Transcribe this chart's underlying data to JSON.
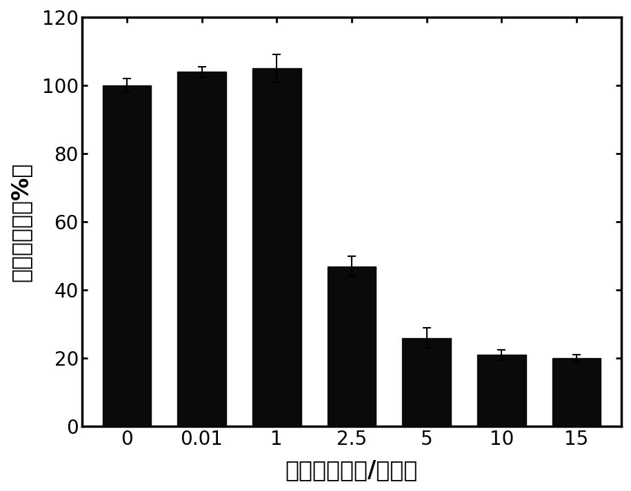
{
  "categories": [
    "0",
    "0.01",
    "1",
    "2.5",
    "5",
    "10",
    "15"
  ],
  "values": [
    100,
    104,
    105,
    47,
    26,
    21,
    20
  ],
  "errors": [
    2.0,
    1.5,
    4.0,
    3.0,
    3.0,
    1.5,
    1.0
  ],
  "bar_color": "#0a0a0a",
  "edge_color": "#0a0a0a",
  "background_color": "#ffffff",
  "xlabel": "浓度（微摩尔/毫升）",
  "ylabel": "细胞存活率（%）",
  "ylim": [
    0,
    120
  ],
  "yticks": [
    0,
    20,
    40,
    60,
    80,
    100,
    120
  ],
  "xlabel_fontsize": 24,
  "ylabel_fontsize": 24,
  "tick_fontsize": 20,
  "bar_width": 0.65,
  "capsize": 4,
  "error_linewidth": 1.5,
  "error_capthick": 1.5
}
